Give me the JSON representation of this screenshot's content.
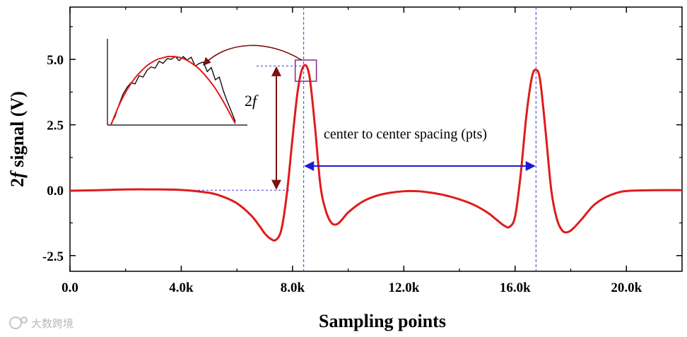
{
  "chart_data": {
    "type": "line",
    "title": "",
    "xlabel": "Sampling points",
    "ylabel_prefix": "2",
    "ylabel_italic": "f",
    "ylabel_suffix": " signal (V)",
    "xlim": [
      0,
      22000
    ],
    "ylim": [
      -3.1,
      7.0
    ],
    "xticks": [
      0,
      4000,
      8000,
      12000,
      16000,
      20000
    ],
    "xtick_labels": [
      "0.0",
      "4.0k",
      "8.0k",
      "12.0k",
      "16.0k",
      "20.0k"
    ],
    "yticks": [
      -2.5,
      0.0,
      2.5,
      5.0
    ],
    "ytick_labels": [
      "-2.5",
      "0.0",
      "2.5",
      "5.0"
    ],
    "grid": false,
    "series": [
      {
        "color": "#e01b1b",
        "x": [
          0,
          1000,
          2000,
          3000,
          4000,
          5000,
          5500,
          6000,
          6500,
          6800,
          7000,
          7200,
          7400,
          7600,
          7800,
          8000,
          8200,
          8400,
          8600,
          8800,
          9000,
          9200,
          9400,
          9600,
          9800,
          10000,
          10500,
          11000,
          11500,
          12000,
          12500,
          13000,
          13500,
          14000,
          14500,
          15000,
          15300,
          15600,
          15800,
          16000,
          16200,
          16400,
          16600,
          16750,
          16900,
          17100,
          17300,
          17500,
          17700,
          17900,
          18100,
          18400,
          18800,
          19200,
          19600,
          20000,
          21000,
          22000
        ],
        "y": [
          -0.02,
          0.0,
          0.03,
          0.03,
          0.01,
          -0.1,
          -0.25,
          -0.5,
          -0.95,
          -1.35,
          -1.65,
          -1.85,
          -1.9,
          -1.5,
          -0.1,
          2.0,
          3.9,
          4.75,
          4.4,
          2.5,
          0.2,
          -0.8,
          -1.25,
          -1.3,
          -1.1,
          -0.85,
          -0.45,
          -0.22,
          -0.1,
          -0.04,
          -0.04,
          -0.1,
          -0.2,
          -0.35,
          -0.55,
          -0.85,
          -1.1,
          -1.35,
          -1.4,
          -1.0,
          0.6,
          2.8,
          4.3,
          4.6,
          4.2,
          2.2,
          0.0,
          -1.1,
          -1.55,
          -1.6,
          -1.45,
          -1.1,
          -0.6,
          -0.3,
          -0.12,
          -0.03,
          0.0,
          0.0
        ]
      }
    ],
    "peak_guides_x": [
      8400,
      16750
    ],
    "baseline_y": 0.0,
    "peak_y": 4.75,
    "annotations": {
      "spacing_label": "center to center spacing (pts)",
      "amplitude_label_prefix": "2",
      "amplitude_label_italic": "f"
    },
    "inset": {
      "noisy_y": [
        0.02,
        0.12,
        0.3,
        0.45,
        0.55,
        0.62,
        0.6,
        0.72,
        0.7,
        0.8,
        0.85,
        0.83,
        0.93,
        0.9,
        0.97,
        0.96,
        1.0,
        0.94,
        1.0,
        0.95,
        0.99,
        0.86,
        0.9,
        0.92,
        0.78,
        0.84,
        0.66,
        0.7,
        0.5,
        0.34,
        0.2,
        0.05
      ],
      "fit_y": [
        0.0,
        0.19,
        0.36,
        0.5,
        0.62,
        0.72,
        0.8,
        0.87,
        0.92,
        0.96,
        0.98,
        1.0,
        1.0,
        0.99,
        0.97,
        0.93,
        0.88,
        0.82,
        0.74,
        0.65,
        0.55,
        0.43,
        0.3,
        0.16,
        0.02
      ]
    },
    "colors": {
      "curve": "#e01b1b",
      "guide": "#3b3bd0",
      "spacing_arrow": "#1a1ad6",
      "amplitude_arrow": "#7a1010",
      "highlight_box": "#7d2a8a",
      "inset_noisy": "#000000",
      "inset_fit": "#e01b1b"
    }
  },
  "watermark": "大数跨境"
}
